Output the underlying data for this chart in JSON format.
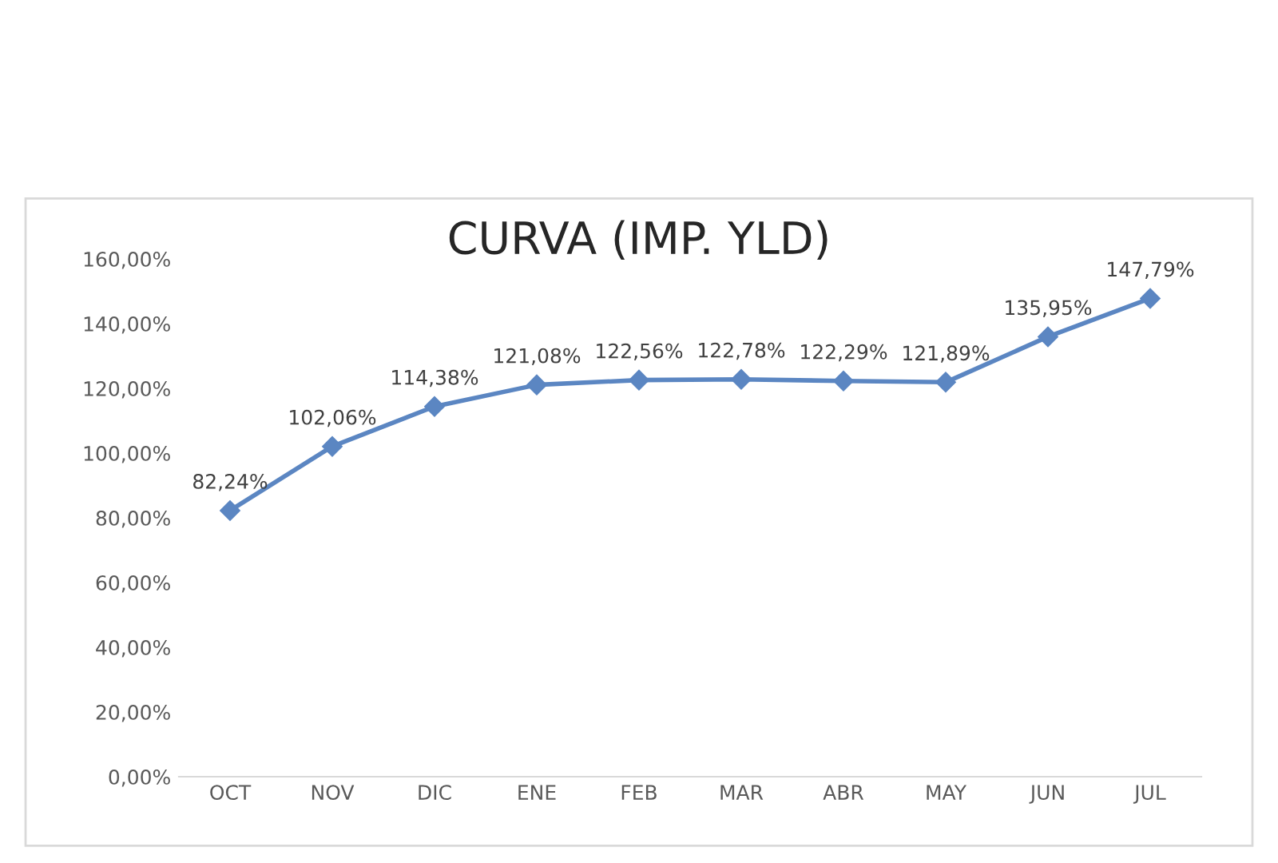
{
  "chart_data": {
    "type": "line",
    "title": "CURVA (IMP. YLD)",
    "categories": [
      "OCT",
      "NOV",
      "DIC",
      "ENE",
      "FEB",
      "MAR",
      "ABR",
      "MAY",
      "JUN",
      "JUL"
    ],
    "series": [
      {
        "color": "#5b86c2",
        "values": [
          82.24,
          102.06,
          114.38,
          121.08,
          122.56,
          122.78,
          122.29,
          121.89,
          135.95,
          147.79
        ],
        "value_labels": [
          "82,24%",
          "102,06%",
          "114,38%",
          "121,08%",
          "122,56%",
          "122,78%",
          "122,29%",
          "121,89%",
          "135,95%",
          "147,79%"
        ]
      }
    ],
    "ylim": [
      0,
      160
    ],
    "yticks": [
      {
        "value": 0,
        "label": "0,00%"
      },
      {
        "value": 20,
        "label": "20,00%"
      },
      {
        "value": 40,
        "label": "40,00%"
      },
      {
        "value": 60,
        "label": "60,00%"
      },
      {
        "value": 80,
        "label": "80,00%"
      },
      {
        "value": 100,
        "label": "100,00%"
      },
      {
        "value": 120,
        "label": "120,00%"
      },
      {
        "value": 140,
        "label": "140,00%"
      },
      {
        "value": 160,
        "label": "160,00%"
      }
    ],
    "marker": "diamond",
    "line_style": "solid",
    "grid": false,
    "legend": false
  }
}
